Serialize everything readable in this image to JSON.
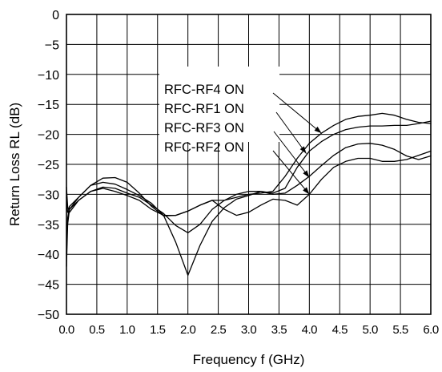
{
  "chart_data": {
    "type": "line",
    "xlabel": "Frequency f (GHz)",
    "ylabel": "Return Loss RL (dB)",
    "xlim": [
      0,
      6
    ],
    "ylim": [
      -50,
      0
    ],
    "grid": true,
    "x_ticks": [
      "0.0",
      "0.5",
      "1.0",
      "1.5",
      "2.0",
      "2.5",
      "3.0",
      "3.5",
      "4.0",
      "4.5",
      "5.0",
      "5.5",
      "6.0"
    ],
    "y_ticks": [
      "0",
      "−5",
      "−10",
      "−15",
      "−20",
      "−25",
      "−30",
      "−35",
      "−40",
      "−45",
      "−50"
    ],
    "legend": [
      "RFC-RF4 ON",
      "RFC-RF1 ON",
      "RFC-RF3 ON",
      "RFC-RF2 ON"
    ],
    "series": [
      {
        "name": "RFC-RF4 ON",
        "points": [
          [
            0,
            -40
          ],
          [
            0.02,
            -34
          ],
          [
            0.05,
            -32
          ],
          [
            0.2,
            -30.5
          ],
          [
            0.4,
            -28.5
          ],
          [
            0.6,
            -27.3
          ],
          [
            0.8,
            -27.2
          ],
          [
            1.0,
            -28
          ],
          [
            1.2,
            -29.8
          ],
          [
            1.4,
            -32
          ],
          [
            1.6,
            -33.6
          ],
          [
            1.8,
            -33.5
          ],
          [
            2.0,
            -32.8
          ],
          [
            2.2,
            -31.8
          ],
          [
            2.4,
            -31
          ],
          [
            2.6,
            -31
          ],
          [
            2.8,
            -30.5
          ],
          [
            3.0,
            -30
          ],
          [
            3.2,
            -29.8
          ],
          [
            3.4,
            -29.5
          ],
          [
            3.6,
            -27
          ],
          [
            3.8,
            -24
          ],
          [
            4.0,
            -21.5
          ],
          [
            4.2,
            -19.8
          ],
          [
            4.4,
            -18.5
          ],
          [
            4.6,
            -17.5
          ],
          [
            4.8,
            -17
          ],
          [
            5.0,
            -16.8
          ],
          [
            5.2,
            -16.5
          ],
          [
            5.4,
            -16.8
          ],
          [
            5.6,
            -17.5
          ],
          [
            5.8,
            -18
          ],
          [
            6.0,
            -18.2
          ]
        ]
      },
      {
        "name": "RFC-RF1 ON",
        "points": [
          [
            0,
            -28.8
          ],
          [
            0.02,
            -32
          ],
          [
            0.05,
            -33
          ],
          [
            0.2,
            -31
          ],
          [
            0.4,
            -29.5
          ],
          [
            0.6,
            -28.8
          ],
          [
            0.8,
            -29
          ],
          [
            1.0,
            -29.8
          ],
          [
            1.2,
            -30.5
          ],
          [
            1.4,
            -31.8
          ],
          [
            1.6,
            -33.2
          ],
          [
            1.8,
            -35.2
          ],
          [
            2.0,
            -36.4
          ],
          [
            2.2,
            -35
          ],
          [
            2.4,
            -32.5
          ],
          [
            2.6,
            -31
          ],
          [
            2.8,
            -30
          ],
          [
            3.0,
            -29.5
          ],
          [
            3.2,
            -29.5
          ],
          [
            3.4,
            -29.8
          ],
          [
            3.6,
            -29
          ],
          [
            3.8,
            -25.5
          ],
          [
            4.0,
            -22.8
          ],
          [
            4.2,
            -21.2
          ],
          [
            4.4,
            -20
          ],
          [
            4.6,
            -19.2
          ],
          [
            4.8,
            -18.8
          ],
          [
            5.0,
            -18.6
          ],
          [
            5.2,
            -18.6
          ],
          [
            5.4,
            -18.5
          ],
          [
            5.6,
            -18.5
          ],
          [
            5.8,
            -18.2
          ],
          [
            6.0,
            -17.8
          ]
        ]
      },
      {
        "name": "RFC-RF3 ON",
        "points": [
          [
            0,
            -42
          ],
          [
            0.02,
            -35
          ],
          [
            0.05,
            -32.5
          ],
          [
            0.2,
            -30.5
          ],
          [
            0.4,
            -28.5
          ],
          [
            0.6,
            -28
          ],
          [
            0.8,
            -28.3
          ],
          [
            1.0,
            -29.2
          ],
          [
            1.2,
            -30.2
          ],
          [
            1.4,
            -31.5
          ],
          [
            1.6,
            -33.5
          ],
          [
            1.8,
            -38
          ],
          [
            2.0,
            -43.5
          ],
          [
            2.2,
            -38.5
          ],
          [
            2.4,
            -34.5
          ],
          [
            2.6,
            -32.2
          ],
          [
            2.8,
            -30.8
          ],
          [
            3.0,
            -30.2
          ],
          [
            3.2,
            -29.5
          ],
          [
            3.4,
            -30
          ],
          [
            3.6,
            -29.8
          ],
          [
            3.8,
            -28.5
          ],
          [
            4.0,
            -27
          ],
          [
            4.2,
            -25.2
          ],
          [
            4.4,
            -23.5
          ],
          [
            4.6,
            -22.2
          ],
          [
            4.8,
            -21.6
          ],
          [
            5.0,
            -21.5
          ],
          [
            5.2,
            -21.8
          ],
          [
            5.4,
            -22.5
          ],
          [
            5.6,
            -23.6
          ],
          [
            5.8,
            -24.2
          ],
          [
            6.0,
            -23.6
          ]
        ]
      },
      {
        "name": "RFC-RF2 ON",
        "points": [
          [
            0,
            -30.5
          ],
          [
            0.02,
            -33
          ],
          [
            0.05,
            -32.5
          ],
          [
            0.2,
            -31
          ],
          [
            0.4,
            -29.5
          ],
          [
            0.6,
            -29
          ],
          [
            0.8,
            -29.5
          ],
          [
            1.0,
            -30.2
          ],
          [
            1.2,
            -31
          ],
          [
            1.4,
            -32.5
          ],
          [
            1.6,
            -33.5
          ],
          [
            1.8,
            -33.5
          ],
          [
            2.0,
            -32.8
          ],
          [
            2.2,
            -31.8
          ],
          [
            2.4,
            -31
          ],
          [
            2.6,
            -32.5
          ],
          [
            2.8,
            -33.5
          ],
          [
            3.0,
            -33
          ],
          [
            3.2,
            -31.8
          ],
          [
            3.4,
            -30.8
          ],
          [
            3.6,
            -31
          ],
          [
            3.8,
            -31.8
          ],
          [
            4.0,
            -30
          ],
          [
            4.2,
            -27.5
          ],
          [
            4.4,
            -25.5
          ],
          [
            4.6,
            -24.5
          ],
          [
            4.8,
            -24
          ],
          [
            5.0,
            -24
          ],
          [
            5.2,
            -24.5
          ],
          [
            5.4,
            -24.5
          ],
          [
            5.6,
            -24.2
          ],
          [
            5.8,
            -23.5
          ],
          [
            6.0,
            -22.8
          ]
        ]
      }
    ],
    "annotations": [
      {
        "series": "RFC-RF4 ON",
        "points_to": [
          4.2,
          -19.8
        ]
      },
      {
        "series": "RFC-RF1 ON",
        "points_to": [
          3.95,
          -23.2
        ]
      },
      {
        "series": "RFC-RF3 ON",
        "points_to": [
          4.0,
          -27.2
        ]
      },
      {
        "series": "RFC-RF2 ON",
        "points_to": [
          4.0,
          -30
        ]
      }
    ]
  }
}
